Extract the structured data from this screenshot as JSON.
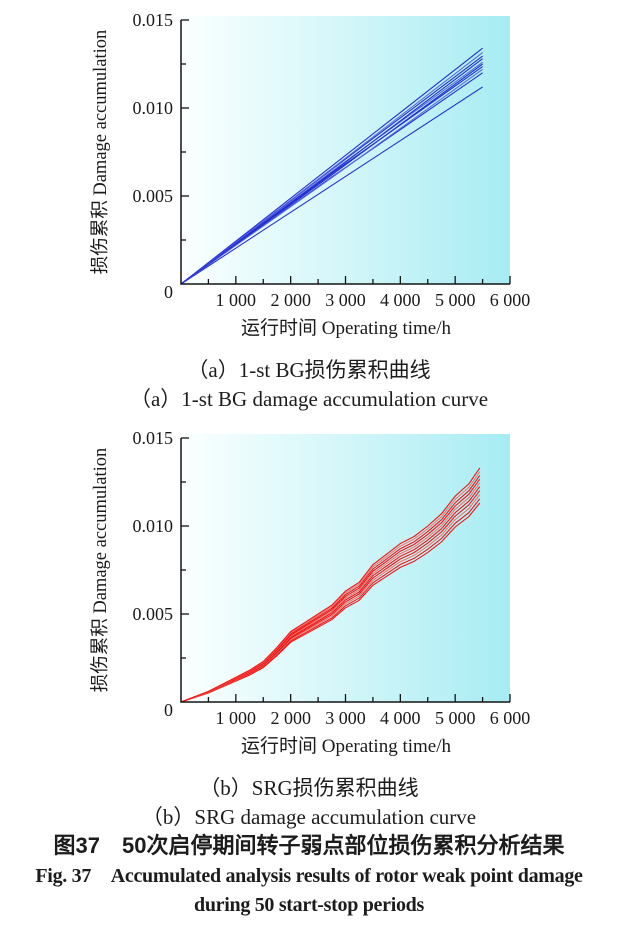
{
  "figure": {
    "caption_cn": "图37　50次启停期间转子弱点部位损伤累积分析结果",
    "caption_en_line1": "Fig. 37　Accumulated analysis results of rotor weak point damage",
    "caption_en_line2": "during 50 start-stop periods"
  },
  "chart_data": [
    {
      "id": "chart-a",
      "type": "line",
      "title_cn": "（a）1-st BG损伤累积曲线",
      "title_en": "（a）1-st BG damage accumulation curve",
      "xlabel": "运行时间 Operating time/h",
      "ylabel": "损伤累积 Damage accumulation",
      "xlim": [
        0,
        6000
      ],
      "ylim": [
        0,
        0.015
      ],
      "xticks": [
        1000,
        2000,
        3000,
        4000,
        5000,
        6000
      ],
      "xtick_labels": [
        "1 000",
        "2 000",
        "3 000",
        "4 000",
        "5 000",
        "6 000"
      ],
      "xticks_minor": [
        500,
        1500,
        2500,
        3500,
        4500,
        5500
      ],
      "yticks": [
        0.005,
        0.01,
        0.015
      ],
      "ytick_labels": [
        "0.005",
        "0.010",
        "0.015"
      ],
      "yticks_minor": [
        0.0025,
        0.0075,
        0.0125
      ],
      "origin_label": "0",
      "grid": false,
      "legend": null,
      "line_color": "#2231cf",
      "line_color_alt": "#5a67e6",
      "plot_bg_gradient": [
        "#fbffff",
        "#d3f6f9",
        "#a7ecf3"
      ],
      "series_note": "50 start-stop damage accumulation curves at rotor weak point, near-linear growth, endpoints at 5500 h",
      "series": [
        {
          "name": "curve-01",
          "points": [
            [
              0,
              0
            ],
            [
              2750,
              0.0056
            ],
            [
              5500,
              0.0112
            ]
          ]
        },
        {
          "name": "curve-02",
          "points": [
            [
              0,
              0
            ],
            [
              2750,
              0.00608
            ],
            [
              5500,
              0.012
            ]
          ]
        },
        {
          "name": "curve-03",
          "points": [
            [
              0,
              0
            ],
            [
              2750,
              0.00604
            ],
            [
              5500,
              0.0122
            ]
          ]
        },
        {
          "name": "curve-04",
          "points": [
            [
              0,
              0
            ],
            [
              2750,
              0.00627
            ],
            [
              5500,
              0.01235
            ]
          ]
        },
        {
          "name": "curve-05",
          "points": [
            [
              0,
              0
            ],
            [
              2750,
              0.0062
            ],
            [
              5500,
              0.0125
            ]
          ]
        },
        {
          "name": "curve-06",
          "points": [
            [
              0,
              0
            ],
            [
              2750,
              0.00639
            ],
            [
              5500,
              0.0126
            ]
          ]
        },
        {
          "name": "curve-07",
          "points": [
            [
              0,
              0
            ],
            [
              2750,
              0.00633
            ],
            [
              5500,
              0.0128
            ]
          ]
        },
        {
          "name": "curve-08",
          "points": [
            [
              0,
              0
            ],
            [
              2750,
              0.00651
            ],
            [
              5500,
              0.01295
            ]
          ]
        },
        {
          "name": "curve-09",
          "points": [
            [
              0,
              0
            ],
            [
              2750,
              0.00655
            ],
            [
              5500,
              0.01315
            ]
          ]
        },
        {
          "name": "curve-10",
          "points": [
            [
              0,
              0
            ],
            [
              2750,
              0.0067
            ],
            [
              5500,
              0.0134
            ]
          ]
        }
      ]
    },
    {
      "id": "chart-b",
      "type": "line",
      "title_cn": "（b）SRG损伤累积曲线",
      "title_en": "（b）SRG damage accumulation curve",
      "xlabel": "运行时间 Operating time/h",
      "ylabel": "损伤累积 Damage accumulation",
      "xlim": [
        0,
        6000
      ],
      "ylim": [
        0,
        0.015
      ],
      "xticks": [
        1000,
        2000,
        3000,
        4000,
        5000,
        6000
      ],
      "xtick_labels": [
        "1 000",
        "2 000",
        "3 000",
        "4 000",
        "5 000",
        "6 000"
      ],
      "xticks_minor": [
        500,
        1500,
        2500,
        3500,
        4500,
        5500
      ],
      "yticks": [
        0.005,
        0.01,
        0.015
      ],
      "ytick_labels": [
        "0.005",
        "0.010",
        "0.015"
      ],
      "yticks_minor": [
        0.0025,
        0.0075,
        0.0125
      ],
      "origin_label": "0",
      "grid": false,
      "legend": null,
      "line_color": "#f01515",
      "line_color_alt": "#f4736a",
      "plot_bg_gradient": [
        "#fbffff",
        "#d3f6f9",
        "#a7ecf3"
      ],
      "series_note": "50 start-stop damage accumulation curves at SRG, wavy stepped growth; values = base_values × scale",
      "x": [
        0,
        250,
        500,
        750,
        1000,
        1250,
        1500,
        1750,
        2000,
        2250,
        2500,
        2750,
        3000,
        3250,
        3500,
        3750,
        4000,
        4250,
        4500,
        4750,
        5000,
        5250,
        5450
      ],
      "base_values": [
        0,
        0.0003,
        0.0006,
        0.001,
        0.0014,
        0.0018,
        0.0023,
        0.0031,
        0.004,
        0.0045,
        0.005,
        0.0055,
        0.0063,
        0.0068,
        0.0078,
        0.0084,
        0.009,
        0.0094,
        0.01,
        0.0107,
        0.0117,
        0.0124,
        0.0133
      ],
      "series": [
        {
          "name": "curve-01",
          "scale": 0.85
        },
        {
          "name": "curve-02",
          "scale": 0.868
        },
        {
          "name": "curve-03",
          "scale": 0.886
        },
        {
          "name": "curve-04",
          "scale": 0.903
        },
        {
          "name": "curve-05",
          "scale": 0.92
        },
        {
          "name": "curve-06",
          "scale": 0.936
        },
        {
          "name": "curve-07",
          "scale": 0.952
        },
        {
          "name": "curve-08",
          "scale": 0.968
        },
        {
          "name": "curve-09",
          "scale": 0.984
        },
        {
          "name": "curve-10",
          "scale": 1.0
        }
      ]
    }
  ]
}
